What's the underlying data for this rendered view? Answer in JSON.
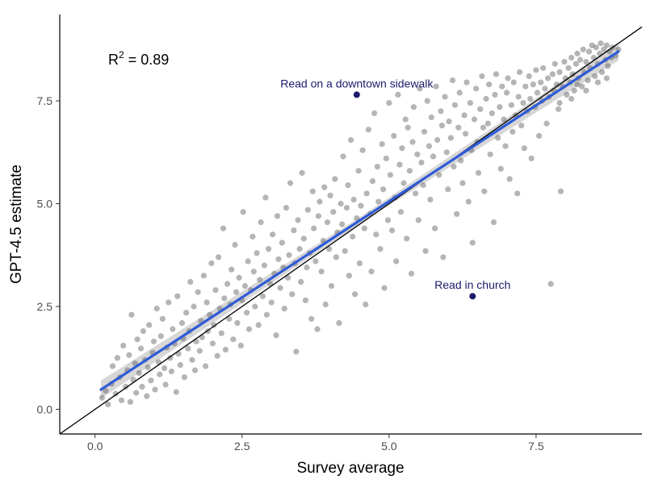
{
  "chart_data": {
    "type": "scatter",
    "xlabel": "Survey average",
    "ylabel": "GPT-4.5 estimate",
    "xlim": [
      -0.6,
      9.3
    ],
    "ylim": [
      -0.6,
      9.6
    ],
    "xticks": [
      0.0,
      2.5,
      5.0,
      7.5
    ],
    "yticks": [
      0.0,
      2.5,
      5.0,
      7.5
    ],
    "tick_labels_x": [
      "0.0",
      "2.5",
      "5.0",
      "7.5"
    ],
    "tick_labels_y": [
      "0.0",
      "2.5",
      "5.0",
      "7.5"
    ],
    "r2_label": "0.89",
    "grid": false,
    "colors": {
      "points": "#5a5a5a",
      "fit_line": "#2f5bd8",
      "fit_band": "#bdbdbd",
      "identity_line": "#000000",
      "highlight": "#1b1b6b"
    },
    "fit_line": {
      "x": [
        0.1,
        8.9
      ],
      "y": [
        0.48,
        8.7
      ]
    },
    "identity_line": {
      "x": [
        -0.6,
        9.3
      ],
      "y": [
        -0.6,
        9.3
      ]
    },
    "highlights": [
      {
        "label": "Read on a downtown sidewalk",
        "x": 4.45,
        "y": 7.65
      },
      {
        "label": "Read in church",
        "x": 6.42,
        "y": 2.75
      }
    ],
    "points": [
      [
        0.12,
        0.28
      ],
      [
        0.18,
        0.45
      ],
      [
        0.22,
        0.12
      ],
      [
        0.28,
        0.62
      ],
      [
        0.3,
        1.05
      ],
      [
        0.35,
        0.38
      ],
      [
        0.38,
        1.25
      ],
      [
        0.42,
        0.78
      ],
      [
        0.45,
        0.22
      ],
      [
        0.48,
        1.55
      ],
      [
        0.52,
        0.55
      ],
      [
        0.55,
        0.95
      ],
      [
        0.58,
        1.32
      ],
      [
        0.6,
        0.18
      ],
      [
        0.62,
        2.3
      ],
      [
        0.65,
        0.72
      ],
      [
        0.68,
        1.12
      ],
      [
        0.7,
        0.4
      ],
      [
        0.72,
        1.7
      ],
      [
        0.75,
        0.88
      ],
      [
        0.78,
        1.48
      ],
      [
        0.8,
        0.55
      ],
      [
        0.82,
        1.9
      ],
      [
        0.85,
        1.2
      ],
      [
        0.88,
        0.32
      ],
      [
        0.9,
        1.02
      ],
      [
        0.92,
        2.05
      ],
      [
        0.95,
        0.7
      ],
      [
        0.98,
        1.38
      ],
      [
        1.0,
        1.65
      ],
      [
        1.02,
        0.48
      ],
      [
        1.05,
        2.45
      ],
      [
        1.08,
        1.15
      ],
      [
        1.1,
        0.85
      ],
      [
        1.12,
        1.78
      ],
      [
        1.15,
        2.2
      ],
      [
        1.18,
        1.0
      ],
      [
        1.2,
        0.6
      ],
      [
        1.22,
        1.5
      ],
      [
        1.25,
        2.6
      ],
      [
        1.28,
        1.25
      ],
      [
        1.3,
        0.92
      ],
      [
        1.32,
        1.95
      ],
      [
        1.35,
        1.6
      ],
      [
        1.38,
        0.42
      ],
      [
        1.4,
        2.75
      ],
      [
        1.42,
        1.35
      ],
      [
        1.45,
        1.08
      ],
      [
        1.48,
        2.1
      ],
      [
        1.5,
        1.72
      ],
      [
        1.52,
        0.78
      ],
      [
        1.55,
        2.35
      ],
      [
        1.58,
        1.48
      ],
      [
        1.6,
        1.9
      ],
      [
        1.62,
        3.1
      ],
      [
        1.65,
        1.2
      ],
      [
        1.68,
        2.5
      ],
      [
        1.7,
        0.95
      ],
      [
        1.72,
        1.65
      ],
      [
        1.75,
        2.85
      ],
      [
        1.78,
        1.42
      ],
      [
        1.8,
        2.15
      ],
      [
        1.82,
        1.75
      ],
      [
        1.85,
        3.25
      ],
      [
        1.88,
        1.05
      ],
      [
        1.9,
        2.6
      ],
      [
        1.92,
        1.9
      ],
      [
        1.95,
        2.3
      ],
      [
        1.98,
        3.55
      ],
      [
        2.0,
        1.6
      ],
      [
        2.02,
        2.05
      ],
      [
        2.05,
        2.9
      ],
      [
        2.08,
        1.3
      ],
      [
        2.1,
        3.7
      ],
      [
        2.12,
        2.45
      ],
      [
        2.15,
        1.85
      ],
      [
        2.18,
        4.4
      ],
      [
        2.2,
        2.7
      ],
      [
        2.22,
        1.45
      ],
      [
        2.25,
        3.05
      ],
      [
        2.28,
        2.2
      ],
      [
        2.3,
        2.55
      ],
      [
        2.32,
        3.4
      ],
      [
        2.35,
        1.7
      ],
      [
        2.38,
        4.0
      ],
      [
        2.4,
        2.85
      ],
      [
        2.42,
        2.1
      ],
      [
        2.45,
        3.2
      ],
      [
        2.48,
        1.55
      ],
      [
        2.5,
        2.65
      ],
      [
        2.52,
        4.8
      ],
      [
        2.55,
        3.0
      ],
      [
        2.58,
        2.35
      ],
      [
        2.6,
        3.6
      ],
      [
        2.62,
        1.95
      ],
      [
        2.65,
        2.9
      ],
      [
        2.68,
        4.2
      ],
      [
        2.7,
        3.35
      ],
      [
        2.72,
        2.5
      ],
      [
        2.75,
        3.8
      ],
      [
        2.78,
        2.05
      ],
      [
        2.8,
        3.15
      ],
      [
        2.82,
        4.55
      ],
      [
        2.85,
        2.75
      ],
      [
        2.88,
        3.5
      ],
      [
        2.9,
        5.15
      ],
      [
        2.92,
        2.3
      ],
      [
        2.95,
        3.9
      ],
      [
        2.98,
        3.05
      ],
      [
        3.0,
        2.6
      ],
      [
        3.02,
        4.25
      ],
      [
        3.05,
        3.3
      ],
      [
        3.08,
        1.8
      ],
      [
        3.1,
        4.7
      ],
      [
        3.12,
        3.65
      ],
      [
        3.15,
        2.95
      ],
      [
        3.18,
        4.05
      ],
      [
        3.2,
        3.45
      ],
      [
        3.22,
        2.45
      ],
      [
        3.25,
        4.9
      ],
      [
        3.28,
        3.2
      ],
      [
        3.3,
        3.75
      ],
      [
        3.32,
        5.5
      ],
      [
        3.35,
        2.8
      ],
      [
        3.38,
        4.35
      ],
      [
        3.4,
        3.55
      ],
      [
        3.42,
        1.4
      ],
      [
        3.45,
        4.6
      ],
      [
        3.48,
        3.9
      ],
      [
        3.5,
        3.1
      ],
      [
        3.52,
        5.75
      ],
      [
        3.55,
        4.15
      ],
      [
        3.58,
        2.65
      ],
      [
        3.6,
        3.45
      ],
      [
        3.62,
        4.85
      ],
      [
        3.65,
        3.8
      ],
      [
        3.68,
        2.2
      ],
      [
        3.7,
        5.3
      ],
      [
        3.72,
        4.4
      ],
      [
        3.75,
        3.6
      ],
      [
        3.78,
        1.95
      ],
      [
        3.8,
        4.7
      ],
      [
        3.82,
        5.05
      ],
      [
        3.85,
        3.35
      ],
      [
        3.88,
        4.1
      ],
      [
        3.9,
        5.4
      ],
      [
        3.92,
        2.55
      ],
      [
        3.95,
        4.55
      ],
      [
        3.98,
        3.9
      ],
      [
        4.0,
        5.2
      ],
      [
        4.02,
        3.0
      ],
      [
        4.05,
        4.8
      ],
      [
        4.08,
        5.6
      ],
      [
        4.1,
        3.7
      ],
      [
        4.12,
        4.3
      ],
      [
        4.15,
        2.1
      ],
      [
        4.18,
        5.0
      ],
      [
        4.2,
        4.5
      ],
      [
        4.22,
        6.15
      ],
      [
        4.25,
        3.85
      ],
      [
        4.28,
        4.9
      ],
      [
        4.3,
        5.45
      ],
      [
        4.32,
        3.25
      ],
      [
        4.35,
        6.55
      ],
      [
        4.38,
        4.2
      ],
      [
        4.4,
        5.1
      ],
      [
        4.42,
        2.8
      ],
      [
        4.45,
        4.65
      ],
      [
        4.48,
        5.8
      ],
      [
        4.5,
        3.55
      ],
      [
        4.52,
        4.95
      ],
      [
        4.55,
        6.3
      ],
      [
        4.58,
        4.4
      ],
      [
        4.6,
        2.55
      ],
      [
        4.62,
        5.25
      ],
      [
        4.65,
        6.8
      ],
      [
        4.68,
        4.75
      ],
      [
        4.7,
        3.35
      ],
      [
        4.72,
        5.55
      ],
      [
        4.75,
        7.2
      ],
      [
        4.78,
        4.25
      ],
      [
        4.8,
        5.9
      ],
      [
        4.82,
        5.05
      ],
      [
        4.85,
        3.9
      ],
      [
        4.88,
        6.45
      ],
      [
        4.9,
        5.35
      ],
      [
        4.92,
        2.95
      ],
      [
        4.95,
        6.1
      ],
      [
        4.98,
        4.6
      ],
      [
        5.0,
        7.45
      ],
      [
        5.02,
        5.7
      ],
      [
        5.05,
        4.35
      ],
      [
        5.08,
        6.65
      ],
      [
        5.1,
        5.15
      ],
      [
        5.12,
        3.6
      ],
      [
        5.15,
        7.65
      ],
      [
        5.18,
        5.95
      ],
      [
        5.2,
        4.8
      ],
      [
        5.22,
        6.35
      ],
      [
        5.25,
        5.5
      ],
      [
        5.28,
        7.05
      ],
      [
        5.3,
        4.15
      ],
      [
        5.32,
        6.85
      ],
      [
        5.35,
        5.8
      ],
      [
        5.38,
        3.3
      ],
      [
        5.4,
        6.5
      ],
      [
        5.42,
        7.35
      ],
      [
        5.45,
        5.25
      ],
      [
        5.48,
        6.2
      ],
      [
        5.5,
        4.6
      ],
      [
        5.52,
        7.8
      ],
      [
        5.55,
        6.0
      ],
      [
        5.58,
        5.45
      ],
      [
        5.6,
        6.75
      ],
      [
        5.62,
        3.85
      ],
      [
        5.65,
        7.5
      ],
      [
        5.68,
        6.4
      ],
      [
        5.7,
        5.1
      ],
      [
        5.72,
        7.1
      ],
      [
        5.75,
        6.15
      ],
      [
        5.78,
        4.4
      ],
      [
        5.8,
        7.85
      ],
      [
        5.82,
        6.55
      ],
      [
        5.85,
        5.7
      ],
      [
        5.88,
        7.25
      ],
      [
        5.9,
        6.9
      ],
      [
        5.92,
        3.7
      ],
      [
        5.95,
        7.6
      ],
      [
        5.98,
        6.25
      ],
      [
        6.0,
        5.35
      ],
      [
        6.02,
        7.0
      ],
      [
        6.05,
        6.6
      ],
      [
        6.08,
        8.0
      ],
      [
        6.1,
        5.9
      ],
      [
        6.12,
        7.4
      ],
      [
        6.15,
        4.75
      ],
      [
        6.18,
        6.85
      ],
      [
        6.2,
        7.7
      ],
      [
        6.22,
        6.05
      ],
      [
        6.25,
        5.5
      ],
      [
        6.28,
        7.15
      ],
      [
        6.3,
        6.7
      ],
      [
        6.32,
        7.95
      ],
      [
        6.35,
        5.05
      ],
      [
        6.38,
        7.45
      ],
      [
        6.4,
        6.3
      ],
      [
        6.42,
        4.05
      ],
      [
        6.45,
        7.05
      ],
      [
        6.48,
        7.8
      ],
      [
        6.5,
        6.5
      ],
      [
        6.52,
        5.75
      ],
      [
        6.55,
        7.3
      ],
      [
        6.58,
        8.1
      ],
      [
        6.6,
        6.85
      ],
      [
        6.62,
        5.3
      ],
      [
        6.65,
        7.55
      ],
      [
        6.68,
        6.95
      ],
      [
        6.7,
        7.9
      ],
      [
        6.72,
        6.2
      ],
      [
        6.75,
        7.2
      ],
      [
        6.78,
        4.55
      ],
      [
        6.8,
        7.65
      ],
      [
        6.82,
        8.15
      ],
      [
        6.85,
        6.6
      ],
      [
        6.88,
        7.35
      ],
      [
        6.9,
        5.85
      ],
      [
        6.92,
        7.85
      ],
      [
        6.95,
        7.05
      ],
      [
        6.98,
        6.4
      ],
      [
        7.0,
        7.7
      ],
      [
        7.02,
        8.05
      ],
      [
        7.05,
        5.6
      ],
      [
        7.08,
        7.4
      ],
      [
        7.1,
        6.75
      ],
      [
        7.12,
        7.95
      ],
      [
        7.15,
        7.15
      ],
      [
        7.18,
        5.25
      ],
      [
        7.2,
        7.6
      ],
      [
        7.22,
        8.2
      ],
      [
        7.25,
        6.9
      ],
      [
        7.28,
        7.45
      ],
      [
        7.3,
        6.35
      ],
      [
        7.32,
        7.85
      ],
      [
        7.35,
        7.25
      ],
      [
        7.38,
        8.1
      ],
      [
        7.4,
        7.55
      ],
      [
        7.42,
        6.1
      ],
      [
        7.45,
        7.9
      ],
      [
        7.48,
        7.35
      ],
      [
        7.5,
        8.25
      ],
      [
        7.52,
        7.7
      ],
      [
        7.55,
        6.65
      ],
      [
        7.58,
        7.95
      ],
      [
        7.6,
        7.5
      ],
      [
        7.62,
        8.3
      ],
      [
        7.65,
        7.8
      ],
      [
        7.68,
        6.95
      ],
      [
        7.7,
        8.05
      ],
      [
        7.72,
        7.6
      ],
      [
        7.75,
        3.05
      ],
      [
        7.78,
        8.15
      ],
      [
        7.8,
        7.75
      ],
      [
        7.82,
        8.4
      ],
      [
        7.85,
        7.9
      ],
      [
        7.88,
        7.3
      ],
      [
        7.9,
        8.2
      ],
      [
        7.92,
        5.3
      ],
      [
        7.95,
        7.85
      ],
      [
        7.98,
        8.45
      ],
      [
        8.0,
        8.05
      ],
      [
        8.02,
        7.65
      ],
      [
        8.05,
        8.3
      ],
      [
        8.08,
        7.95
      ],
      [
        8.1,
        8.55
      ],
      [
        8.12,
        8.15
      ],
      [
        8.15,
        7.75
      ],
      [
        8.18,
        8.4
      ],
      [
        8.2,
        8.65
      ],
      [
        8.22,
        8.05
      ],
      [
        8.25,
        8.5
      ],
      [
        8.28,
        7.85
      ],
      [
        8.3,
        8.75
      ],
      [
        8.32,
        8.2
      ],
      [
        8.35,
        8.45
      ],
      [
        8.38,
        8.0
      ],
      [
        8.4,
        8.7
      ],
      [
        8.42,
        8.3
      ],
      [
        8.45,
        8.85
      ],
      [
        8.48,
        8.55
      ],
      [
        8.5,
        8.1
      ],
      [
        8.52,
        8.8
      ],
      [
        8.55,
        8.4
      ],
      [
        8.58,
        8.65
      ],
      [
        8.6,
        8.9
      ],
      [
        8.62,
        8.2
      ],
      [
        8.65,
        8.75
      ],
      [
        8.68,
        8.5
      ],
      [
        8.7,
        8.85
      ],
      [
        8.72,
        8.35
      ],
      [
        8.75,
        8.7
      ],
      [
        8.78,
        8.55
      ],
      [
        8.8,
        8.8
      ],
      [
        8.85,
        8.6
      ],
      [
        8.9,
        8.75
      ],
      [
        8.7,
        8.05
      ],
      [
        8.55,
        7.95
      ],
      [
        8.35,
        7.75
      ],
      [
        8.1,
        7.55
      ],
      [
        7.9,
        7.45
      ],
      [
        8.2,
        7.9
      ]
    ]
  }
}
